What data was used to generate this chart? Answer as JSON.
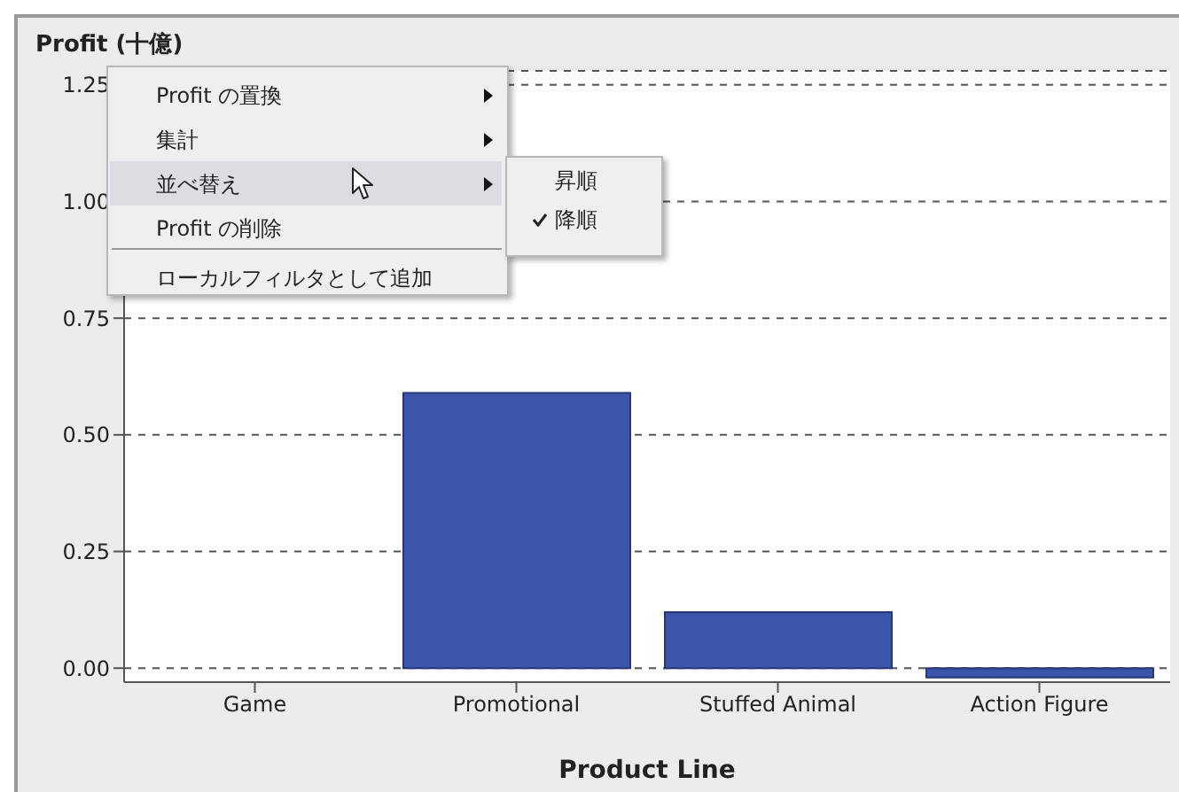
{
  "chart_data": {
    "type": "bar",
    "ylabel": "Profit (十億)",
    "xlabel": "Product Line",
    "categories": [
      "Game",
      "Promotional",
      "Stuffed Animal",
      "Action Figure"
    ],
    "values": [
      null,
      0.59,
      0.12,
      -0.02
    ],
    "color": "#3b56a9",
    "ylim": [
      -0.03,
      1.28
    ],
    "yticks": [
      {
        "value": 0,
        "label": "0.00"
      },
      0.25,
      {
        "value": 0.5,
        "label": "0.50"
      },
      0.75,
      {
        "value": 1,
        "label": "1.00"
      },
      1.25
    ],
    "grid": "y",
    "annotations": [
      "Profit の置換",
      "集計",
      "並べ替え",
      "Profit の削除",
      "ローカルフィルタとして追加",
      "昇順",
      "降順"
    ]
  }
}
